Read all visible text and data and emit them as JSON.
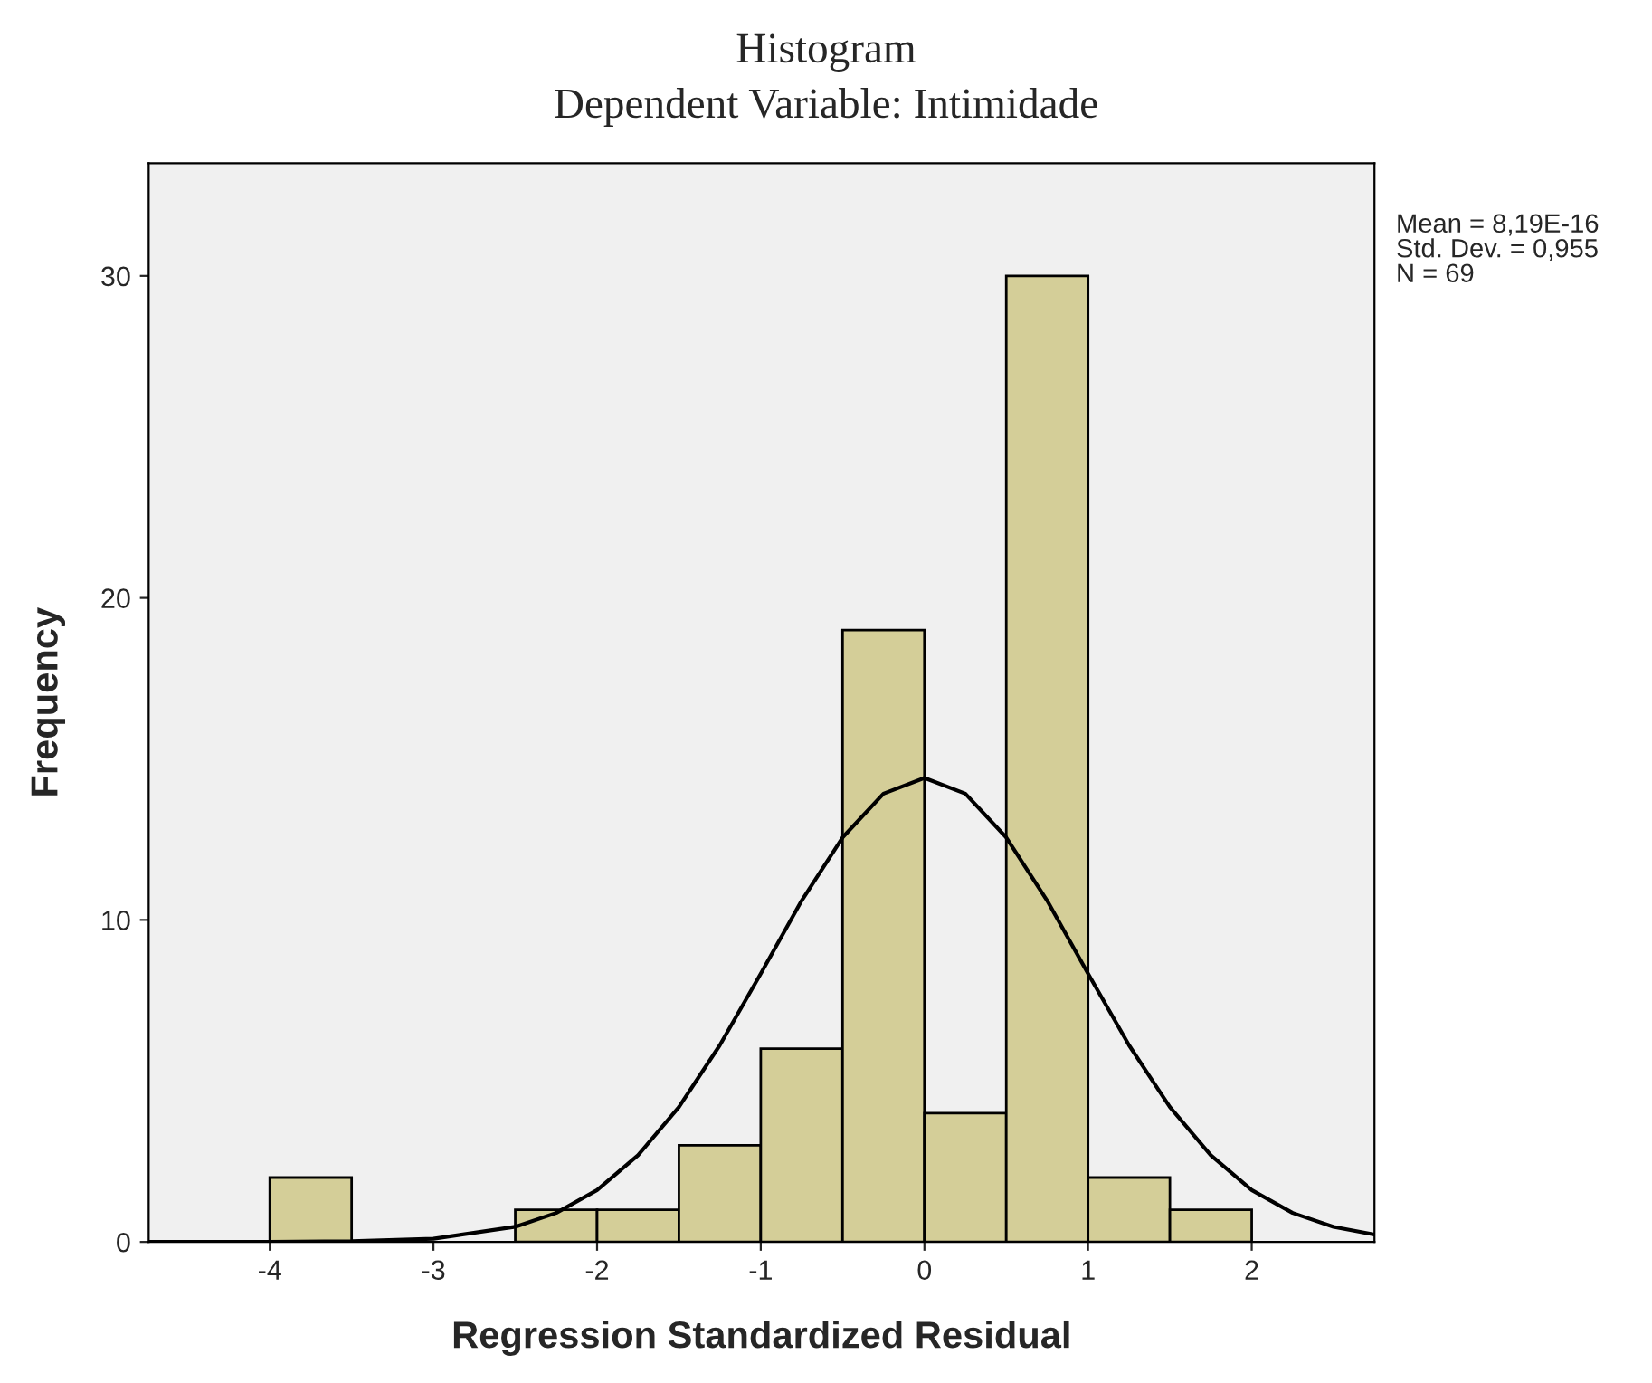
{
  "chart_data": {
    "type": "histogram",
    "title": "Histogram",
    "subtitle": "Dependent Variable: Intimidade",
    "xlabel": "Regression Standardized Residual",
    "ylabel": "Frequency",
    "bins": [
      -4,
      -3.5,
      -3,
      -2.5,
      -2,
      -1.5,
      -1,
      -0.5,
      0,
      0.5,
      1,
      1.5,
      2
    ],
    "values": [
      2,
      0,
      0,
      1,
      1,
      3,
      6,
      19,
      4,
      30,
      2,
      1
    ],
    "color": "#d4ce98",
    "series": [
      {
        "type": "line",
        "color": "#000000",
        "x": [
          -4.74,
          -4,
          -3.5,
          -3,
          -2.5,
          -2.25,
          -2,
          -1.75,
          -1.5,
          -1.25,
          -1,
          -0.75,
          -0.5,
          -0.25,
          0,
          0.25,
          0.5,
          0.75,
          1,
          1.25,
          1.5,
          1.75,
          2,
          2.25,
          2.5,
          2.75
        ],
        "values": [
          0,
          0,
          0.02,
          0.1,
          0.47,
          0.9,
          1.61,
          2.69,
          4.19,
          6.11,
          8.33,
          10.6,
          12.56,
          13.92,
          14.41,
          13.92,
          12.56,
          10.6,
          8.33,
          6.11,
          4.19,
          2.69,
          1.61,
          0.9,
          0.47,
          0.23
        ]
      }
    ],
    "xlim": [
      -4.74,
      2.75
    ],
    "xticks": [
      -4,
      -3,
      -2,
      -1,
      0,
      1,
      2
    ],
    "ylim": [
      0,
      33.5
    ],
    "yticks": [
      0,
      10,
      20,
      30
    ],
    "grid": false,
    "legend": false,
    "annotations": [
      "Mean = 8,19E-16",
      "Std. Dev. = 0,955",
      "N = 69"
    ]
  }
}
